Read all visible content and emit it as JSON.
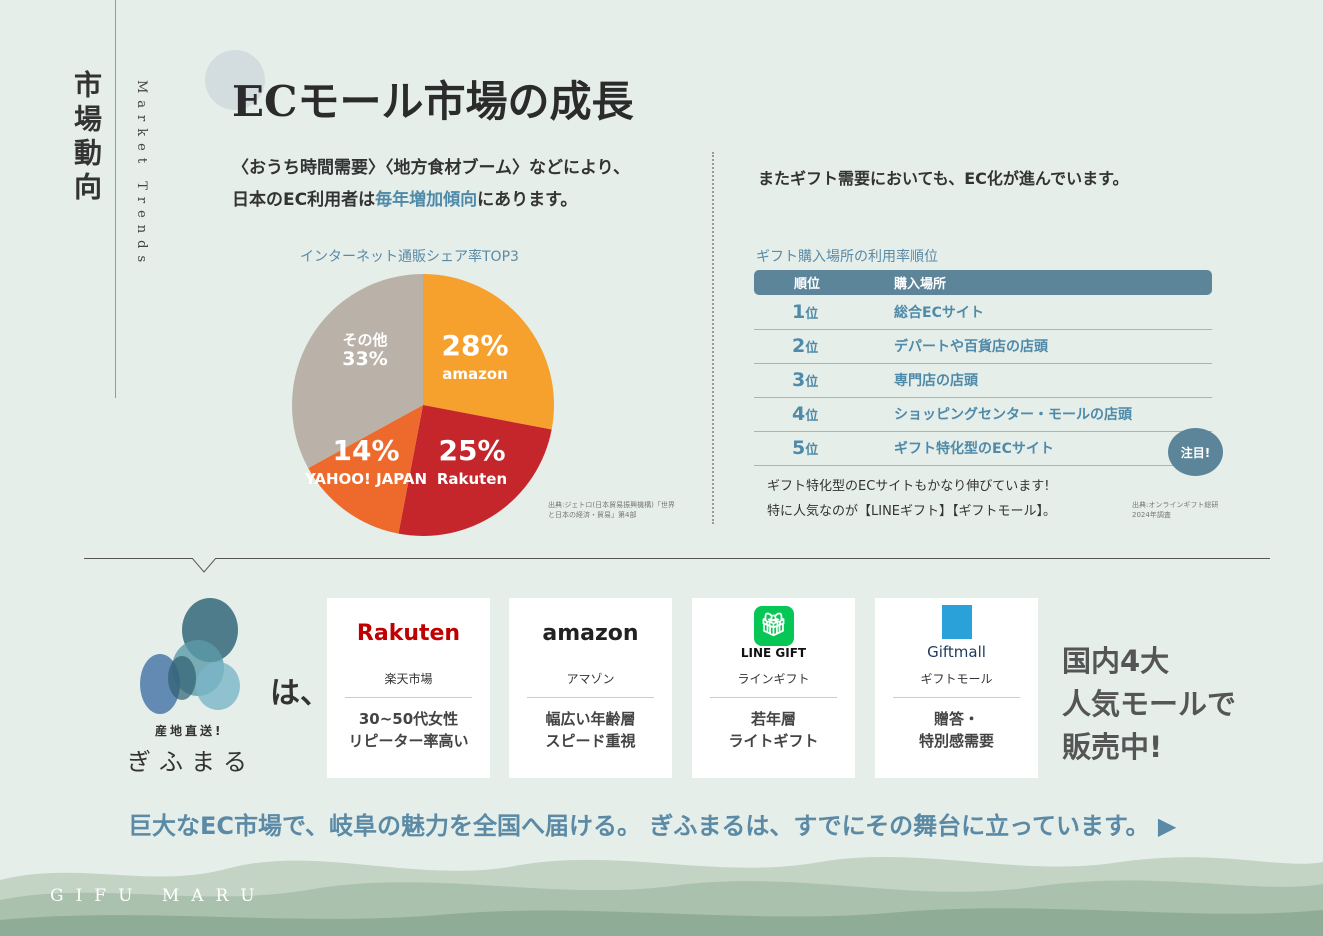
{
  "side": {
    "title": "市場動向",
    "subtitle": "Market Trends"
  },
  "title": "ECモール市場の成長",
  "left": {
    "lead_1": "〈おうち時間需要〉〈地方食材ブーム〉などにより、",
    "lead_2a": "日本のEC利用者は",
    "lead_2b": "毎年増加傾向",
    "lead_2c": "にあります。",
    "source": "出典:ジェトロ(日本貿易振興機構)「世界と日本の経済・貿易」第4部"
  },
  "chart_data": {
    "type": "pie",
    "title": "インターネット通販シェア率TOP3",
    "start": "12 o'clock, clockwise",
    "slices": [
      {
        "name": "amazon",
        "value": 28,
        "label": "28%",
        "color": "#f6a02e"
      },
      {
        "name": "Rakuten",
        "value": 25,
        "label": "25%",
        "color": "#c4262c"
      },
      {
        "name": "YAHOO! JAPAN",
        "value": 14,
        "label": "14%",
        "color": "#ee6a2c"
      },
      {
        "name": "その他",
        "value": 33,
        "label": "33%",
        "color": "#bab2a8"
      }
    ]
  },
  "right": {
    "lead": "またギフト需要においても、EC化が進んでいます。",
    "table_title": "ギフト購入場所の利用率順位",
    "headers": [
      "順位",
      "購入場所"
    ],
    "rows": [
      {
        "rank": "1",
        "unit": "位",
        "place": "総合ECサイト"
      },
      {
        "rank": "2",
        "unit": "位",
        "place": "デパートや百貨店の店頭"
      },
      {
        "rank": "3",
        "unit": "位",
        "place": "専門店の店頭"
      },
      {
        "rank": "4",
        "unit": "位",
        "place": "ショッピングセンター・モールの店頭"
      },
      {
        "rank": "5",
        "unit": "位",
        "place": "ギフト特化型のECサイト"
      }
    ],
    "badge": "注目!",
    "note_1": "ギフト特化型のECサイトもかなり伸びています!",
    "note_2": "特に人気なのが【LINEギフト】【ギフトモール】。",
    "source_1": "出典:オンラインギフト総研",
    "source_2": "2024年調査"
  },
  "brand": {
    "tag": "産地直送!",
    "name": "ぎふまる",
    "ha": "は、"
  },
  "cards": [
    {
      "logo": "Rakuten",
      "name": "楽天市場",
      "desc_1": "30~50代女性",
      "desc_2": "リピーター率高い"
    },
    {
      "logo": "amazon",
      "name": "アマゾン",
      "desc_1": "幅広い年齢層",
      "desc_2": "スピード重視"
    },
    {
      "logo": "LINE GIFT",
      "name": "ラインギフト",
      "desc_1": "若年層",
      "desc_2": "ライトギフト"
    },
    {
      "logo": "Giftmall",
      "name": "ギフトモール",
      "desc_1": "贈答・",
      "desc_2": "特別感需要"
    }
  ],
  "big": {
    "l1": "国内4大",
    "l2": "人気モールで",
    "l3": "販売中!"
  },
  "tagline": "巨大なEC市場で、岐阜の魅力を全国へ届ける。 ぎふまるは、すでにその舞台に立っています。",
  "footer": "GIFU MARU"
}
